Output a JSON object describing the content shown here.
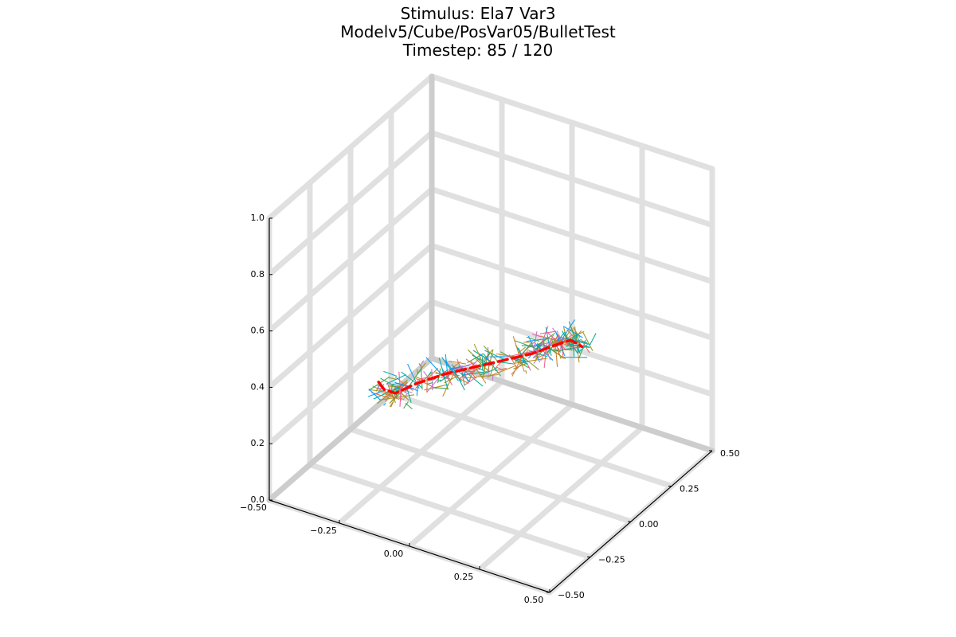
{
  "chart_data": {
    "type": "line3d",
    "title": [
      "Stimulus: Ela7 Var3",
      "Modelv5/Cube/PosVar05/BulletTest",
      "Timestep: 85 / 120"
    ],
    "xlabel": "",
    "ylabel": "",
    "zlabel": "",
    "xlim": [
      -0.5,
      0.5
    ],
    "ylim": [
      -0.5,
      0.5
    ],
    "zlim": [
      0.0,
      1.0
    ],
    "x_ticks": [
      "−0.50",
      "−0.25",
      "0.00",
      "0.25",
      "0.50"
    ],
    "y_ticks": [
      "−0.50",
      "−0.25",
      "0.00",
      "0.25",
      "0.50"
    ],
    "z_ticks": [
      "0.0",
      "0.2",
      "0.4",
      "0.6",
      "0.8",
      "1.0"
    ],
    "grid": true,
    "legend": "none",
    "highlight_series": {
      "color": "#ff0000",
      "style": "dashed",
      "points": [
        {
          "x": -0.4,
          "y": 0.0,
          "z": 0.2
        },
        {
          "x": -0.38,
          "y": 0.0,
          "z": 0.18
        },
        {
          "x": -0.34,
          "y": 0.0,
          "z": 0.18
        },
        {
          "x": -0.28,
          "y": 0.03,
          "z": 0.22
        },
        {
          "x": -0.2,
          "y": 0.07,
          "z": 0.26
        },
        {
          "x": -0.12,
          "y": 0.11,
          "z": 0.29
        },
        {
          "x": -0.04,
          "y": 0.15,
          "z": 0.32
        },
        {
          "x": 0.04,
          "y": 0.19,
          "z": 0.35
        },
        {
          "x": 0.1,
          "y": 0.23,
          "z": 0.38
        },
        {
          "x": 0.14,
          "y": 0.25,
          "z": 0.4
        },
        {
          "x": 0.18,
          "y": 0.25,
          "z": 0.39
        }
      ]
    },
    "sample_trajectories": {
      "description_shown": "many thin multi-colored trajectory segments clustered along the highlighted path",
      "colors": [
        "#009af9",
        "#e26f46",
        "#3da44d",
        "#c271d2",
        "#ac8d18",
        "#00a9ad",
        "#ed5e93",
        "#c68225",
        "#00a98d",
        "#8e971d"
      ],
      "count": 260,
      "spread": 0.05
    }
  }
}
